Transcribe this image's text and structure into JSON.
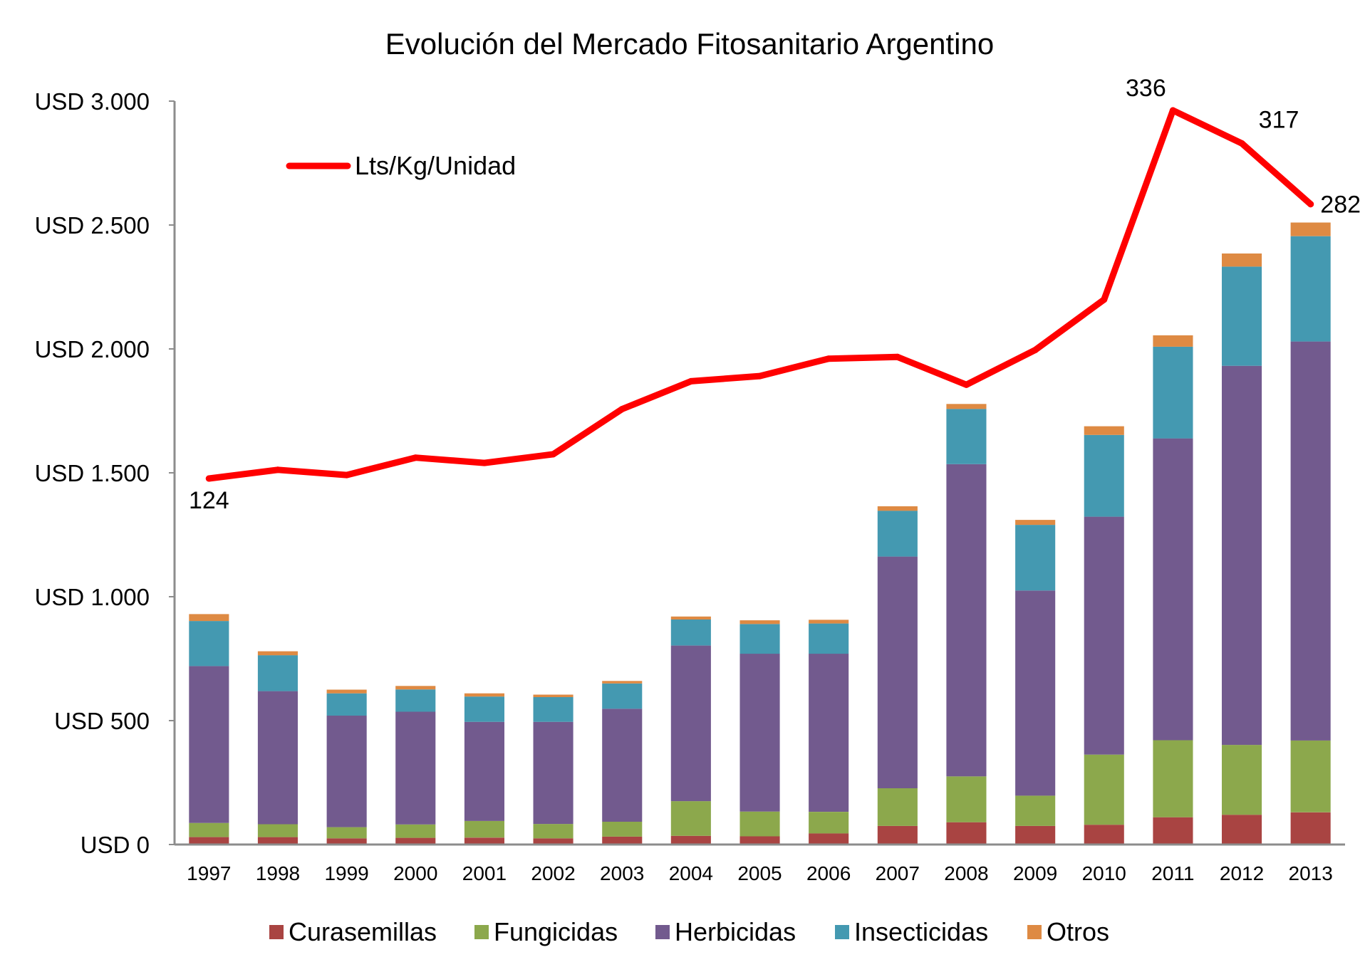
{
  "chart_data": {
    "type": "bar",
    "title": "Evolución del Mercado Fitosanitario Argentino",
    "xlabel": "",
    "ylabel": "",
    "ylim": [
      0,
      3000
    ],
    "y_ticks": [
      0,
      500,
      1000,
      1500,
      2000,
      2500,
      3000
    ],
    "y_tick_labels": [
      "USD 0",
      "USD 500",
      "USD 1.000",
      "USD 1.500",
      "USD 2.000",
      "USD 2.500",
      "USD 3.000"
    ],
    "grid": false,
    "stacked": true,
    "categories": [
      "1997",
      "1998",
      "1999",
      "2000",
      "2001",
      "2002",
      "2003",
      "2004",
      "2005",
      "2006",
      "2007",
      "2008",
      "2009",
      "2010",
      "2011",
      "2012",
      "2013"
    ],
    "series": [
      {
        "name": "Curasemillas",
        "color": "#a94442",
        "values": [
          30,
          30,
          25,
          27,
          28,
          25,
          32,
          35,
          33,
          45,
          75,
          90,
          75,
          80,
          110,
          120,
          130
        ]
      },
      {
        "name": "Fungicidas",
        "color": "#8ca84c",
        "values": [
          57,
          52,
          45,
          54,
          67,
          58,
          60,
          140,
          100,
          87,
          152,
          185,
          122,
          283,
          311,
          282,
          290
        ]
      },
      {
        "name": "Herbicidas",
        "color": "#725a8e",
        "values": [
          633,
          537,
          450,
          455,
          400,
          412,
          456,
          628,
          637,
          638,
          935,
          1260,
          828,
          960,
          1218,
          1530,
          1610
        ]
      },
      {
        "name": "Insecticidas",
        "color": "#4499b1",
        "values": [
          182,
          145,
          90,
          90,
          102,
          100,
          102,
          105,
          120,
          122,
          185,
          223,
          265,
          330,
          370,
          400,
          425
        ]
      },
      {
        "name": "Otros",
        "color": "#de8a43",
        "values": [
          28,
          16,
          15,
          14,
          13,
          10,
          10,
          12,
          15,
          15,
          18,
          20,
          20,
          35,
          46,
          53,
          55
        ]
      }
    ],
    "line_series": {
      "name": "Lts/Kg/Unidad",
      "color": "#ff0000",
      "values": [
        124,
        129,
        126,
        136,
        133,
        138,
        164,
        180,
        183,
        193,
        194,
        178,
        198,
        227,
        336,
        317,
        282
      ],
      "labels": [
        {
          "index": 0,
          "text": "124"
        },
        {
          "index": 14,
          "text": "336"
        },
        {
          "index": 15,
          "text": "317"
        },
        {
          "index": 16,
          "text": "282"
        }
      ]
    },
    "legend": {
      "bars_position": "bottom",
      "line_position": "top-left"
    }
  }
}
